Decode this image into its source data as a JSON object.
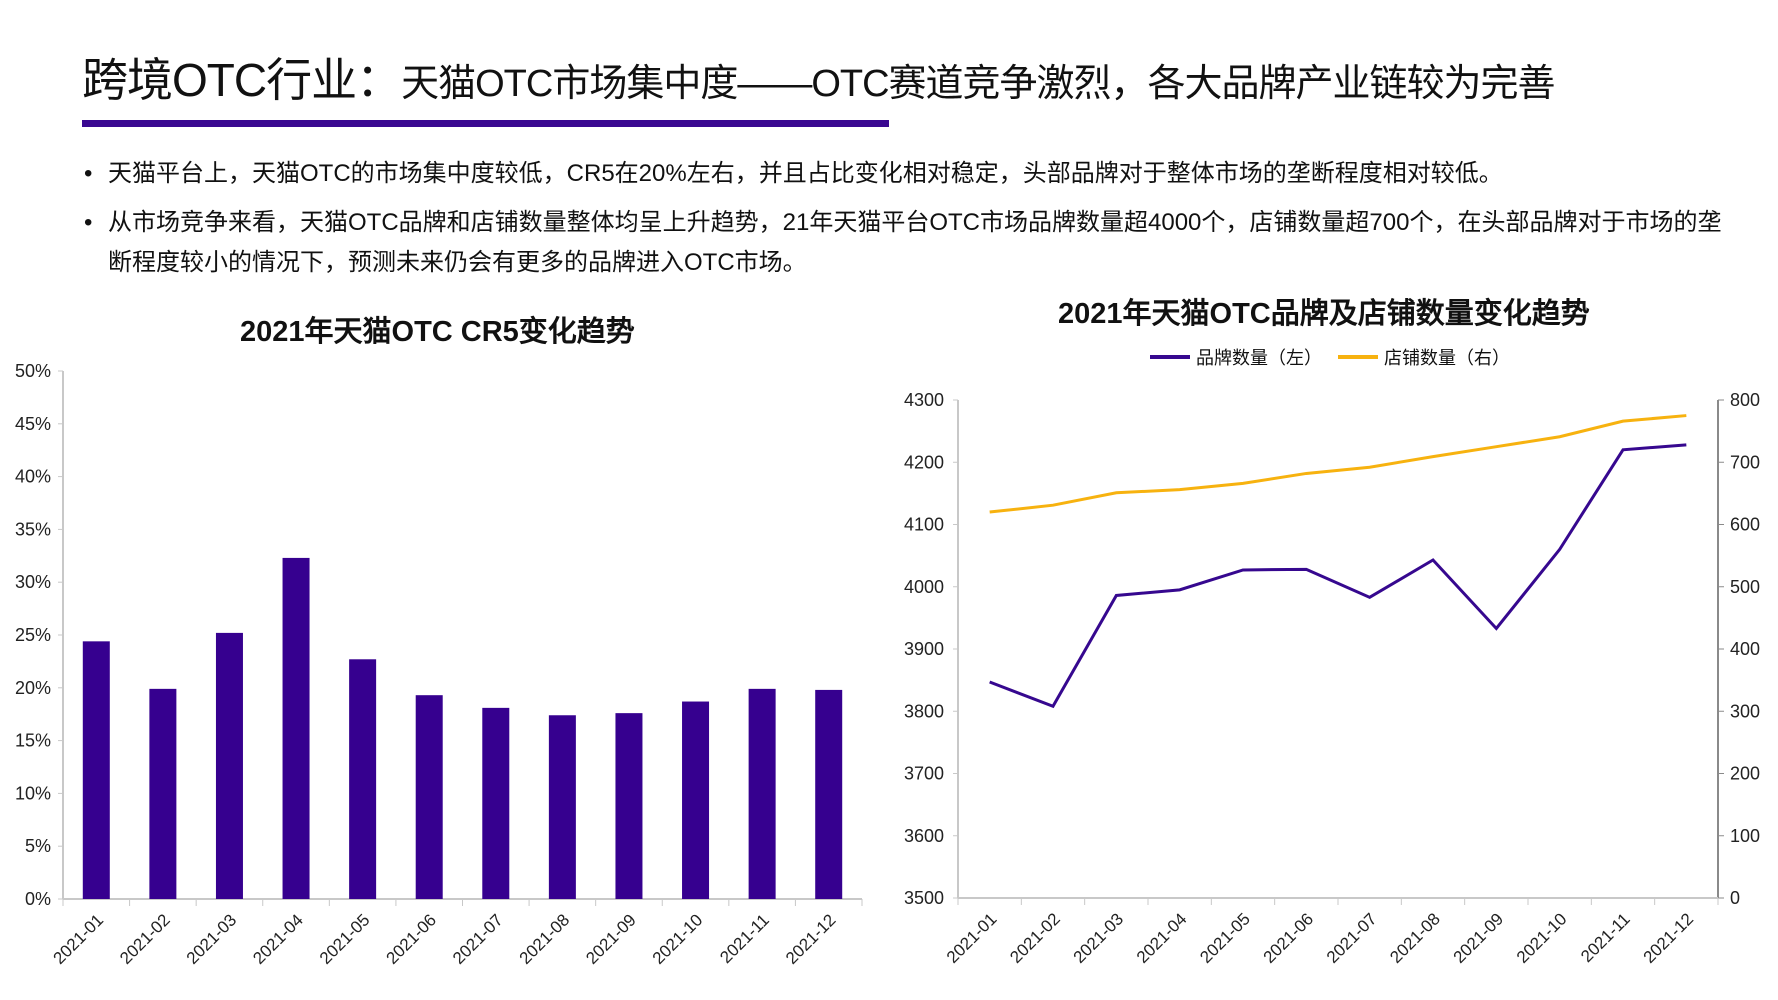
{
  "header": {
    "title_main": "跨境OTC行业：",
    "title_sub": "天猫OTC市场集中度——OTC赛道竞争激烈，各大品牌产业链较为完善",
    "accent_color": "#3a0891"
  },
  "bullets": [
    {
      "marker": "•",
      "text": "天猫平台上，天猫OTC的市场集中度较低，CR5在20%左右，并且占比变化相对稳定，头部品牌对于整体市场的垄断程度相对较低。"
    },
    {
      "marker": "•",
      "text": "从市场竞争来看，天猫OTC品牌和店铺数量整体均呈上升趋势，21年天猫平台OTC市场品牌数量超4000个，店铺数量超700个，在头部品牌对于市场的垄断程度较小的情况下，预测未来仍会有更多的品牌进入OTC市场。"
    }
  ],
  "colors": {
    "bar": "#36008f",
    "brand_line": "#36088f",
    "store_line": "#f7b20f",
    "axis": "#c8c8c8"
  },
  "chart_data": [
    {
      "type": "bar",
      "title": "2021年天猫OTC CR5变化趋势",
      "xlabel": "",
      "ylabel": "",
      "categories": [
        "2021-01",
        "2021-02",
        "2021-03",
        "2021-04",
        "2021-05",
        "2021-06",
        "2021-07",
        "2021-08",
        "2021-09",
        "2021-10",
        "2021-11",
        "2021-12"
      ],
      "values": [
        24.4,
        19.9,
        25.2,
        32.3,
        22.7,
        19.3,
        18.1,
        17.4,
        17.6,
        18.7,
        19.9,
        19.8
      ],
      "unit": "%",
      "ylim": [
        0,
        50
      ],
      "yticks": [
        "0%",
        "5%",
        "10%",
        "15%",
        "20%",
        "25%",
        "30%",
        "35%",
        "40%",
        "45%",
        "50%"
      ],
      "grid": false,
      "legend": null
    },
    {
      "type": "line",
      "title": "2021年天猫OTC品牌及店铺数量变化趋势",
      "xlabel": "",
      "categories": [
        "2021-01",
        "2021-02",
        "2021-03",
        "2021-04",
        "2021-05",
        "2021-06",
        "2021-07",
        "2021-08",
        "2021-09",
        "2021-10",
        "2021-11",
        "2021-12"
      ],
      "series": [
        {
          "name": "品牌数量（左）",
          "axis": "left",
          "values": [
            3847,
            3808,
            3986,
            3995,
            4027,
            4028,
            3983,
            4043,
            3933,
            4060,
            4220,
            4228
          ]
        },
        {
          "name": "店铺数量（右）",
          "axis": "right",
          "values": [
            620,
            631,
            651,
            656,
            666,
            682,
            692,
            709,
            725,
            741,
            766,
            775
          ]
        }
      ],
      "ylim_left": [
        3500,
        4300
      ],
      "ylim_right": [
        0,
        800
      ],
      "yticks_left": [
        "3500",
        "3600",
        "3700",
        "3800",
        "3900",
        "4000",
        "4100",
        "4200",
        "4300"
      ],
      "yticks_right": [
        "0",
        "100",
        "200",
        "300",
        "400",
        "500",
        "600",
        "700",
        "800"
      ],
      "legend_position": "top",
      "grid": false
    }
  ]
}
